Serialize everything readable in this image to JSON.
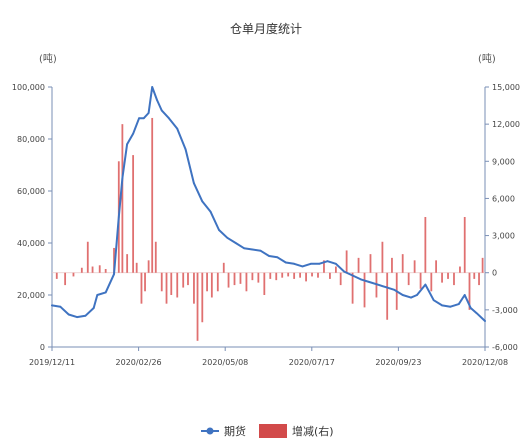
{
  "chart_data": {
    "type": "bar+line",
    "title": "仓单月度统计",
    "left_unit": "(吨)",
    "right_unit": "(吨)",
    "x_tick_labels": [
      "2019/12/11",
      "2020/02/26",
      "2020/05/08",
      "2020/07/17",
      "2020/09/23",
      "2020/12/08"
    ],
    "x_range": [
      "2019-12-11",
      "2020-12-08"
    ],
    "y_left": {
      "min": 0,
      "max": 100000,
      "ticks": [
        "0",
        "20,000",
        "40,000",
        "60,000",
        "80,000",
        "100,000"
      ]
    },
    "y_right": {
      "min": -6000,
      "max": 15000,
      "ticks": [
        "-6,000",
        "-3,000",
        "0",
        "3,000",
        "6,000",
        "9,000",
        "12,000",
        "15,000"
      ]
    },
    "legend": [
      "期货",
      "增减(右)"
    ],
    "colors": {
      "line": "#3f73c1",
      "bar": "#e07070",
      "axis": "#7a8fb5"
    },
    "series": [
      {
        "name": "期货",
        "axis": "left",
        "points": [
          [
            "2019-12-11",
            16000
          ],
          [
            "2019-12-18",
            15500
          ],
          [
            "2019-12-25",
            12500
          ],
          [
            "2020-01-01",
            11500
          ],
          [
            "2020-01-08",
            12000
          ],
          [
            "2020-01-15",
            15000
          ],
          [
            "2020-01-18",
            20000
          ],
          [
            "2020-01-25",
            21000
          ],
          [
            "2020-02-01",
            28000
          ],
          [
            "2020-02-05",
            50000
          ],
          [
            "2020-02-08",
            65000
          ],
          [
            "2020-02-12",
            78000
          ],
          [
            "2020-02-17",
            82000
          ],
          [
            "2020-02-22",
            88000
          ],
          [
            "2020-02-26",
            88000
          ],
          [
            "2020-03-01",
            90000
          ],
          [
            "2020-03-04",
            100000
          ],
          [
            "2020-03-08",
            95000
          ],
          [
            "2020-03-12",
            91000
          ],
          [
            "2020-03-18",
            88000
          ],
          [
            "2020-03-25",
            84000
          ],
          [
            "2020-04-01",
            76000
          ],
          [
            "2020-04-08",
            63000
          ],
          [
            "2020-04-15",
            56000
          ],
          [
            "2020-04-22",
            52000
          ],
          [
            "2020-04-29",
            45000
          ],
          [
            "2020-05-06",
            42000
          ],
          [
            "2020-05-13",
            40000
          ],
          [
            "2020-05-20",
            38000
          ],
          [
            "2020-05-27",
            37500
          ],
          [
            "2020-06-03",
            37000
          ],
          [
            "2020-06-10",
            35000
          ],
          [
            "2020-06-17",
            34500
          ],
          [
            "2020-06-24",
            32500
          ],
          [
            "2020-07-01",
            32000
          ],
          [
            "2020-07-08",
            31000
          ],
          [
            "2020-07-15",
            32000
          ],
          [
            "2020-07-22",
            32000
          ],
          [
            "2020-07-29",
            33000
          ],
          [
            "2020-08-05",
            32000
          ],
          [
            "2020-08-12",
            29000
          ],
          [
            "2020-08-19",
            27500
          ],
          [
            "2020-08-26",
            26000
          ],
          [
            "2020-09-02",
            25000
          ],
          [
            "2020-09-09",
            24000
          ],
          [
            "2020-09-16",
            23000
          ],
          [
            "2020-09-23",
            22000
          ],
          [
            "2020-09-30",
            20000
          ],
          [
            "2020-10-07",
            19000
          ],
          [
            "2020-10-12",
            20000
          ],
          [
            "2020-10-19",
            24000
          ],
          [
            "2020-10-26",
            18000
          ],
          [
            "2020-11-02",
            16000
          ],
          [
            "2020-11-09",
            15500
          ],
          [
            "2020-11-16",
            16500
          ],
          [
            "2020-11-21",
            20000
          ],
          [
            "2020-11-26",
            15000
          ],
          [
            "2020-12-01",
            13000
          ],
          [
            "2020-12-08",
            10000
          ]
        ]
      },
      {
        "name": "增减(右)",
        "axis": "right",
        "points": [
          [
            "2019-12-15",
            -500
          ],
          [
            "2019-12-22",
            -1000
          ],
          [
            "2019-12-29",
            -300
          ],
          [
            "2020-01-05",
            400
          ],
          [
            "2020-01-10",
            2500
          ],
          [
            "2020-01-14",
            500
          ],
          [
            "2020-01-20",
            600
          ],
          [
            "2020-01-25",
            300
          ],
          [
            "2020-02-01",
            2000
          ],
          [
            "2020-02-05",
            9000
          ],
          [
            "2020-02-08",
            12000
          ],
          [
            "2020-02-12",
            1500
          ],
          [
            "2020-02-17",
            9500
          ],
          [
            "2020-02-20",
            800
          ],
          [
            "2020-02-24",
            -2500
          ],
          [
            "2020-02-27",
            -1500
          ],
          [
            "2020-03-01",
            1000
          ],
          [
            "2020-03-04",
            12500
          ],
          [
            "2020-03-07",
            2500
          ],
          [
            "2020-03-12",
            -1500
          ],
          [
            "2020-03-16",
            -2500
          ],
          [
            "2020-03-20",
            -1800
          ],
          [
            "2020-03-25",
            -2000
          ],
          [
            "2020-03-30",
            -1200
          ],
          [
            "2020-04-03",
            -1000
          ],
          [
            "2020-04-08",
            -2500
          ],
          [
            "2020-04-11",
            -5500
          ],
          [
            "2020-04-15",
            -4000
          ],
          [
            "2020-04-19",
            -1500
          ],
          [
            "2020-04-23",
            -2000
          ],
          [
            "2020-04-28",
            -1500
          ],
          [
            "2020-05-03",
            800
          ],
          [
            "2020-05-07",
            -1200
          ],
          [
            "2020-05-12",
            -1000
          ],
          [
            "2020-05-17",
            -900
          ],
          [
            "2020-05-22",
            -1500
          ],
          [
            "2020-05-27",
            -600
          ],
          [
            "2020-06-01",
            -800
          ],
          [
            "2020-06-06",
            -1800
          ],
          [
            "2020-06-11",
            -500
          ],
          [
            "2020-06-16",
            -600
          ],
          [
            "2020-06-21",
            -400
          ],
          [
            "2020-06-26",
            -300
          ],
          [
            "2020-07-01",
            -500
          ],
          [
            "2020-07-06",
            -400
          ],
          [
            "2020-07-11",
            -700
          ],
          [
            "2020-07-16",
            -300
          ],
          [
            "2020-07-21",
            -400
          ],
          [
            "2020-07-26",
            1000
          ],
          [
            "2020-07-31",
            -500
          ],
          [
            "2020-08-05",
            500
          ],
          [
            "2020-08-09",
            -1000
          ],
          [
            "2020-08-14",
            1800
          ],
          [
            "2020-08-19",
            -2500
          ],
          [
            "2020-08-24",
            1200
          ],
          [
            "2020-08-29",
            -2800
          ],
          [
            "2020-09-03",
            1500
          ],
          [
            "2020-09-08",
            -2000
          ],
          [
            "2020-09-13",
            2500
          ],
          [
            "2020-09-17",
            -3800
          ],
          [
            "2020-09-21",
            1200
          ],
          [
            "2020-09-25",
            -3000
          ],
          [
            "2020-09-30",
            1500
          ],
          [
            "2020-10-05",
            -1000
          ],
          [
            "2020-10-10",
            1000
          ],
          [
            "2020-10-15",
            -1300
          ],
          [
            "2020-10-19",
            4500
          ],
          [
            "2020-10-24",
            -1500
          ],
          [
            "2020-10-28",
            1000
          ],
          [
            "2020-11-02",
            -800
          ],
          [
            "2020-11-07",
            -500
          ],
          [
            "2020-11-12",
            -1000
          ],
          [
            "2020-11-17",
            500
          ],
          [
            "2020-11-21",
            4500
          ],
          [
            "2020-11-25",
            -3000
          ],
          [
            "2020-11-29",
            -500
          ],
          [
            "2020-12-03",
            -1000
          ],
          [
            "2020-12-06",
            1200
          ]
        ]
      }
    ]
  }
}
